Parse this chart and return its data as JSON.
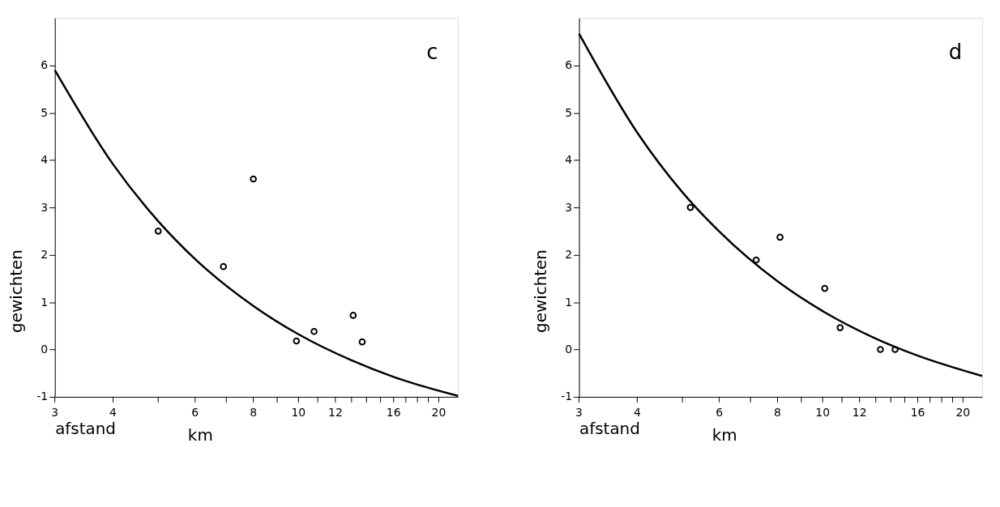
{
  "chart_data": [
    {
      "type": "scatter",
      "xlabel": "afstand",
      "ylabel": "gewichten",
      "annotations": [
        "c",
        "km"
      ],
      "x": [
        5.0,
        6.9,
        8.0,
        9.9,
        10.8,
        13.1,
        13.7
      ],
      "series": [
        {
          "color": "#000000",
          "values": [
            2.5,
            1.75,
            3.6,
            0.18,
            0.38,
            0.72,
            0.16
          ],
          "marker": "circle"
        },
        {
          "type": "line",
          "color": "#000000",
          "x": [
            3,
            4,
            5,
            6,
            8,
            10,
            13,
            16,
            22
          ],
          "values": [
            5.9,
            3.91,
            2.71,
            1.91,
            0.92,
            0.32,
            -0.23,
            -0.58,
            -0.98
          ],
          "marker": "none",
          "line_style": "solid"
        }
      ],
      "xlim": [
        3,
        22
      ],
      "ylim": [
        -1,
        7
      ],
      "xticks": [
        3,
        4,
        {
          "value": 5,
          "label": null
        },
        6,
        {
          "value": 7,
          "label": null
        },
        8,
        {
          "value": 9,
          "label": null
        },
        10,
        {
          "value": 11,
          "label": null
        },
        12,
        {
          "value": 13,
          "label": null
        },
        {
          "value": 14,
          "label": null
        },
        {
          "value": 15,
          "label": null
        },
        16,
        {
          "value": 17,
          "label": null
        },
        {
          "value": 18,
          "label": null
        },
        {
          "value": 19,
          "label": null
        },
        20
      ],
      "yticks": [
        -1,
        0,
        1,
        2,
        3,
        4,
        5,
        6
      ],
      "grid": false,
      "log": "x"
    },
    {
      "type": "scatter",
      "xlabel": "afstand",
      "ylabel": "gewichten",
      "annotations": [
        "d",
        "km"
      ],
      "x": [
        5.2,
        7.2,
        8.1,
        10.1,
        10.9,
        13.3,
        14.3
      ],
      "series": [
        {
          "color": "#000000",
          "values": [
            3.0,
            1.89,
            2.37,
            1.29,
            0.46,
            0.0,
            0.0
          ],
          "marker": "circle"
        },
        {
          "type": "line",
          "color": "#000000",
          "x": [
            3,
            4,
            5,
            6,
            8,
            10,
            13,
            16,
            22
          ],
          "values": [
            6.67,
            4.58,
            3.32,
            2.49,
            1.44,
            0.81,
            0.23,
            -0.13,
            -0.56
          ],
          "marker": "none",
          "line_style": "solid"
        }
      ],
      "xlim": [
        3,
        22
      ],
      "ylim": [
        -1,
        7
      ],
      "xticks": [
        3,
        4,
        {
          "value": 5,
          "label": null
        },
        6,
        {
          "value": 7,
          "label": null
        },
        8,
        {
          "value": 9,
          "label": null
        },
        10,
        {
          "value": 11,
          "label": null
        },
        12,
        {
          "value": 13,
          "label": null
        },
        {
          "value": 14,
          "label": null
        },
        {
          "value": 15,
          "label": null
        },
        16,
        {
          "value": 17,
          "label": null
        },
        {
          "value": 18,
          "label": null
        },
        {
          "value": 19,
          "label": null
        },
        20
      ],
      "yticks": [
        -1,
        0,
        1,
        2,
        3,
        4,
        5,
        6
      ],
      "grid": false,
      "log": "x"
    }
  ]
}
